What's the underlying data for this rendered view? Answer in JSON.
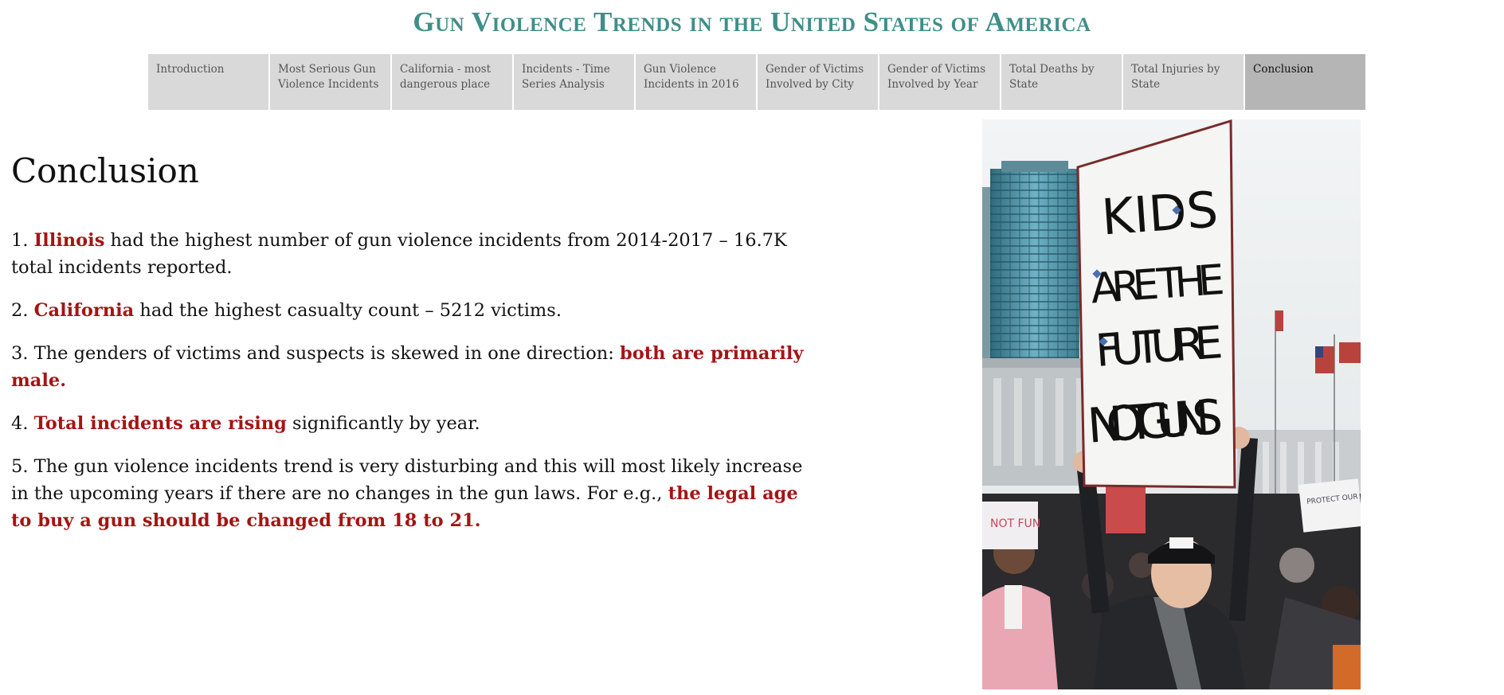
{
  "header": {
    "title": "Gun Violence Trends in the United States of America"
  },
  "nav": {
    "tabs": [
      {
        "label": "Introduction",
        "active": false
      },
      {
        "label": "Most Serious Gun Violence Incidents",
        "active": false
      },
      {
        "label": "California - most dangerous place",
        "active": false
      },
      {
        "label": "Incidents - Time Series Analysis",
        "active": false
      },
      {
        "label": "Gun Violence Incidents in 2016",
        "active": false
      },
      {
        "label": "Gender of Victims Involved by City",
        "active": false
      },
      {
        "label": "Gender of Victims Involved by Year",
        "active": false
      },
      {
        "label": "Total Deaths by State",
        "active": false
      },
      {
        "label": "Total Injuries by State",
        "active": false
      },
      {
        "label": "Conclusion",
        "active": true
      }
    ]
  },
  "main": {
    "heading": "Conclusion",
    "points": [
      {
        "number": "1.",
        "before": "",
        "highlight": "Illinois",
        "after": " had the highest number of gun violence incidents from 2014-2017 – 16.7K total incidents reported."
      },
      {
        "number": "2.",
        "before": "",
        "highlight": "California",
        "after": " had the highest casualty count – 5212 victims."
      },
      {
        "number": "3.",
        "before": "The genders of victims and suspects is skewed in one direction: ",
        "highlight": "both are primarily male.",
        "after": ""
      },
      {
        "number": "4.",
        "before": "",
        "highlight": "Total incidents are rising",
        "after": " significantly by year."
      },
      {
        "number": "5.",
        "before": "The gun violence incidents trend is very disturbing and this will most likely increase in the upcoming years if there are no changes in the gun laws. For e.g., ",
        "highlight": "the legal age to buy a gun should be changed from 18 to 21.",
        "after": ""
      }
    ]
  },
  "image": {
    "sign_text": "KIDS ARE THE FUTURE NOT GUNS",
    "small_signs": [
      "PROTECT OUR CHILDREN",
      "NOT FUN"
    ]
  },
  "colors": {
    "title": "#3e8f88",
    "highlight": "#a51414",
    "tab_bg": "#d9d9d9",
    "tab_active_bg": "#b5b5b5"
  }
}
